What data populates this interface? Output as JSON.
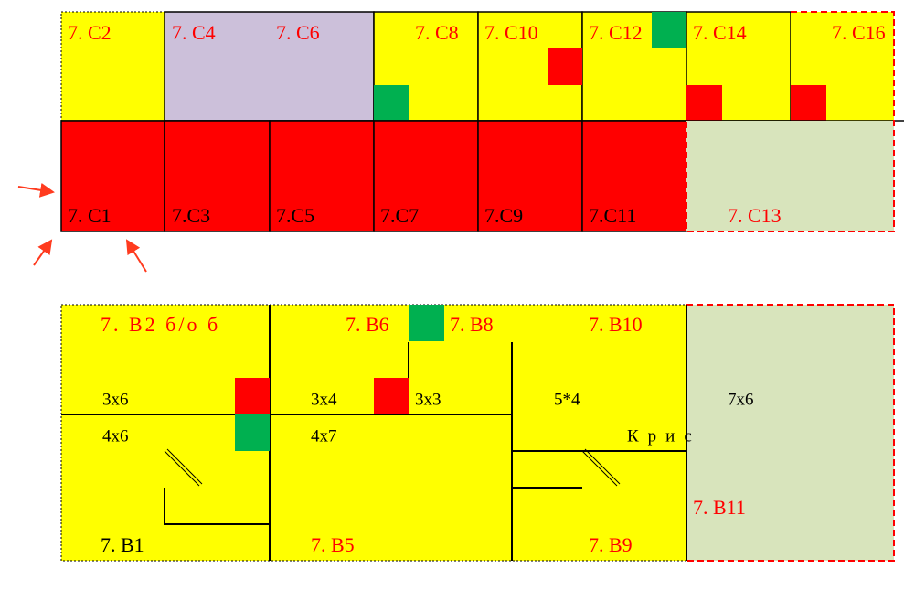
{
  "upper": {
    "top_row": [
      "7. С2",
      "7. С4",
      "7. С6",
      "7. С8",
      "7. С10",
      "7. С12",
      "7. С14",
      "7. С16"
    ],
    "bottom_row": [
      "7. С1",
      "7.С3",
      "7.С5",
      "7.С7",
      "7.С9",
      "7.С11",
      "7. С13"
    ]
  },
  "lower": {
    "rooms": [
      "7. В2 б/о б",
      "7. В6",
      "7. В8",
      "7. В10",
      "7. В1",
      "7. В5",
      "7. В9",
      "7. В11"
    ],
    "sizes": [
      "3х6",
      "3х4",
      "3х3",
      "5*4",
      "7х6",
      "4х6",
      "4х7"
    ],
    "note": "Крис"
  }
}
